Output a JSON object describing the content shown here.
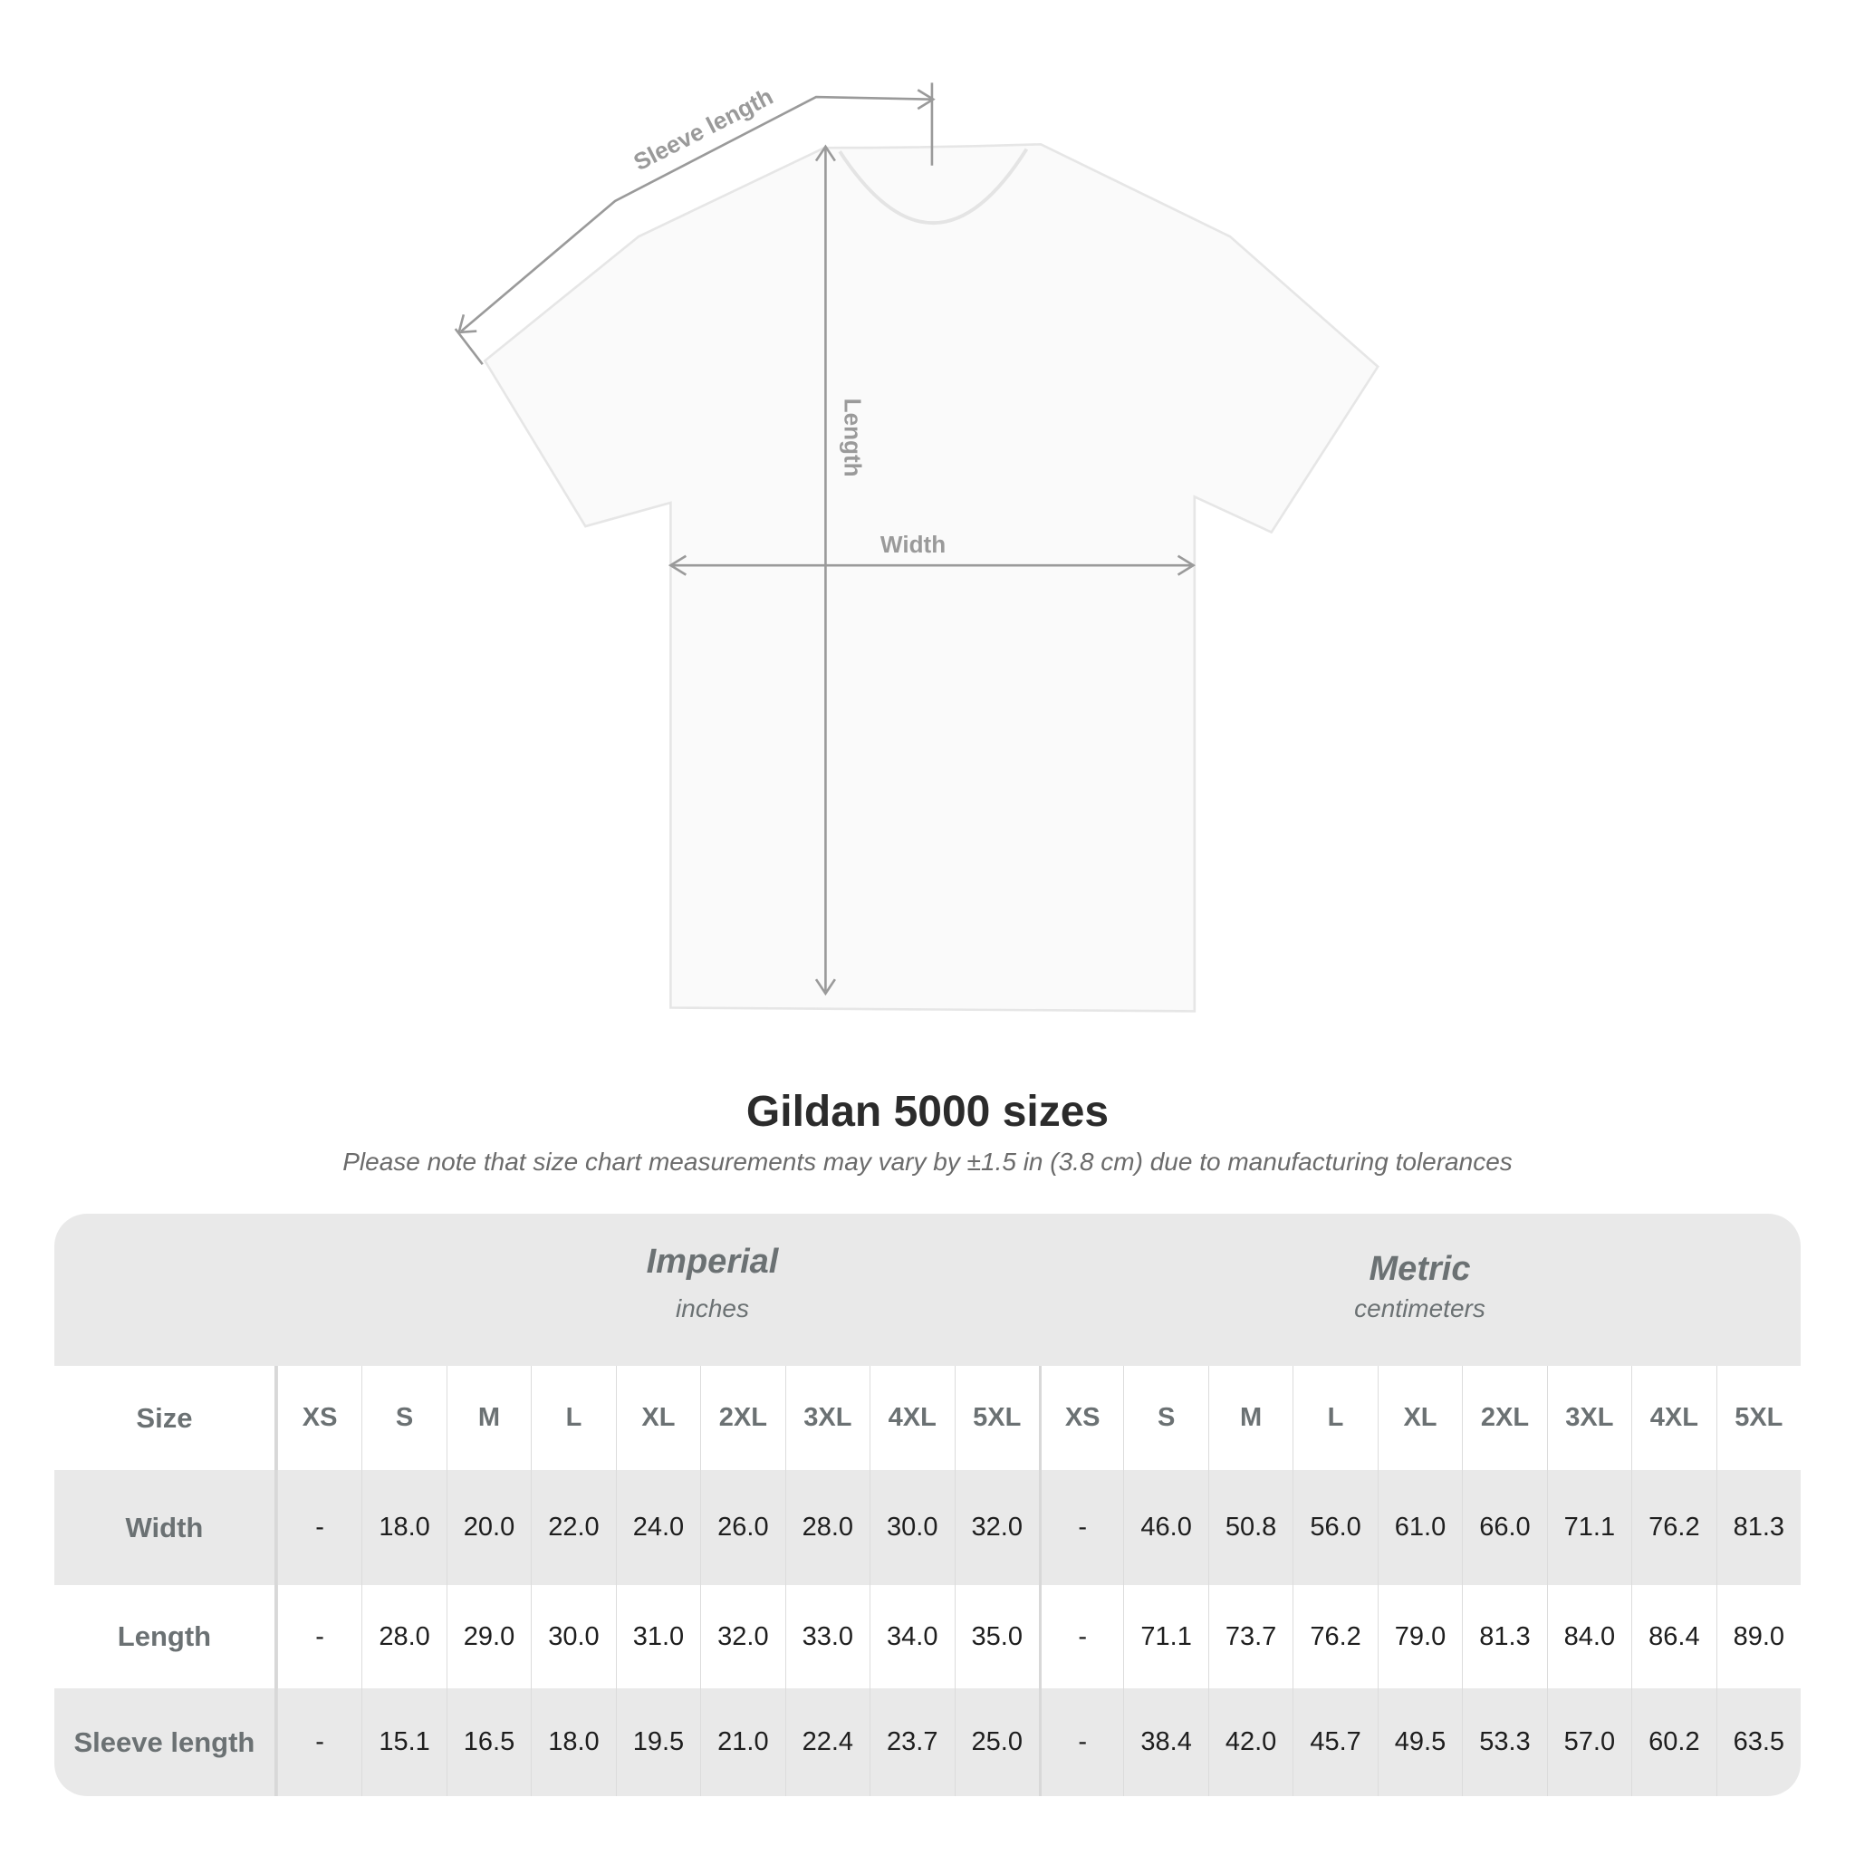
{
  "diagram": {
    "labels": {
      "sleeve": "Sleeve length",
      "length": "Length",
      "width": "Width"
    },
    "shirt_color": "#fafafa",
    "line_color": "#9a9a9a"
  },
  "title": "Gildan 5000 sizes",
  "note": "Please note that size chart measurements may vary by ±1.5 in (3.8 cm) due to manufacturing tolerances",
  "table": {
    "imperial": {
      "label": "Imperial",
      "unit": "inches"
    },
    "metric": {
      "label": "Metric",
      "unit": "centimeters"
    },
    "size_label": "Size",
    "sizes": [
      "XS",
      "S",
      "M",
      "L",
      "XL",
      "2XL",
      "3XL",
      "4XL",
      "5XL"
    ],
    "rows": [
      {
        "label": "Width",
        "imperial": [
          "-",
          "18.0",
          "20.0",
          "22.0",
          "24.0",
          "26.0",
          "28.0",
          "30.0",
          "32.0"
        ],
        "metric": [
          "-",
          "46.0",
          "50.8",
          "56.0",
          "61.0",
          "66.0",
          "71.1",
          "76.2",
          "81.3"
        ]
      },
      {
        "label": "Length",
        "imperial": [
          "-",
          "28.0",
          "29.0",
          "30.0",
          "31.0",
          "32.0",
          "33.0",
          "34.0",
          "35.0"
        ],
        "metric": [
          "-",
          "71.1",
          "73.7",
          "76.2",
          "79.0",
          "81.3",
          "84.0",
          "86.4",
          "89.0"
        ]
      },
      {
        "label": "Sleeve length",
        "imperial": [
          "-",
          "15.1",
          "16.5",
          "18.0",
          "19.5",
          "21.0",
          "22.4",
          "23.7",
          "25.0"
        ],
        "metric": [
          "-",
          "38.4",
          "42.0",
          "45.7",
          "49.5",
          "53.3",
          "57.0",
          "60.2",
          "63.5"
        ]
      }
    ]
  }
}
